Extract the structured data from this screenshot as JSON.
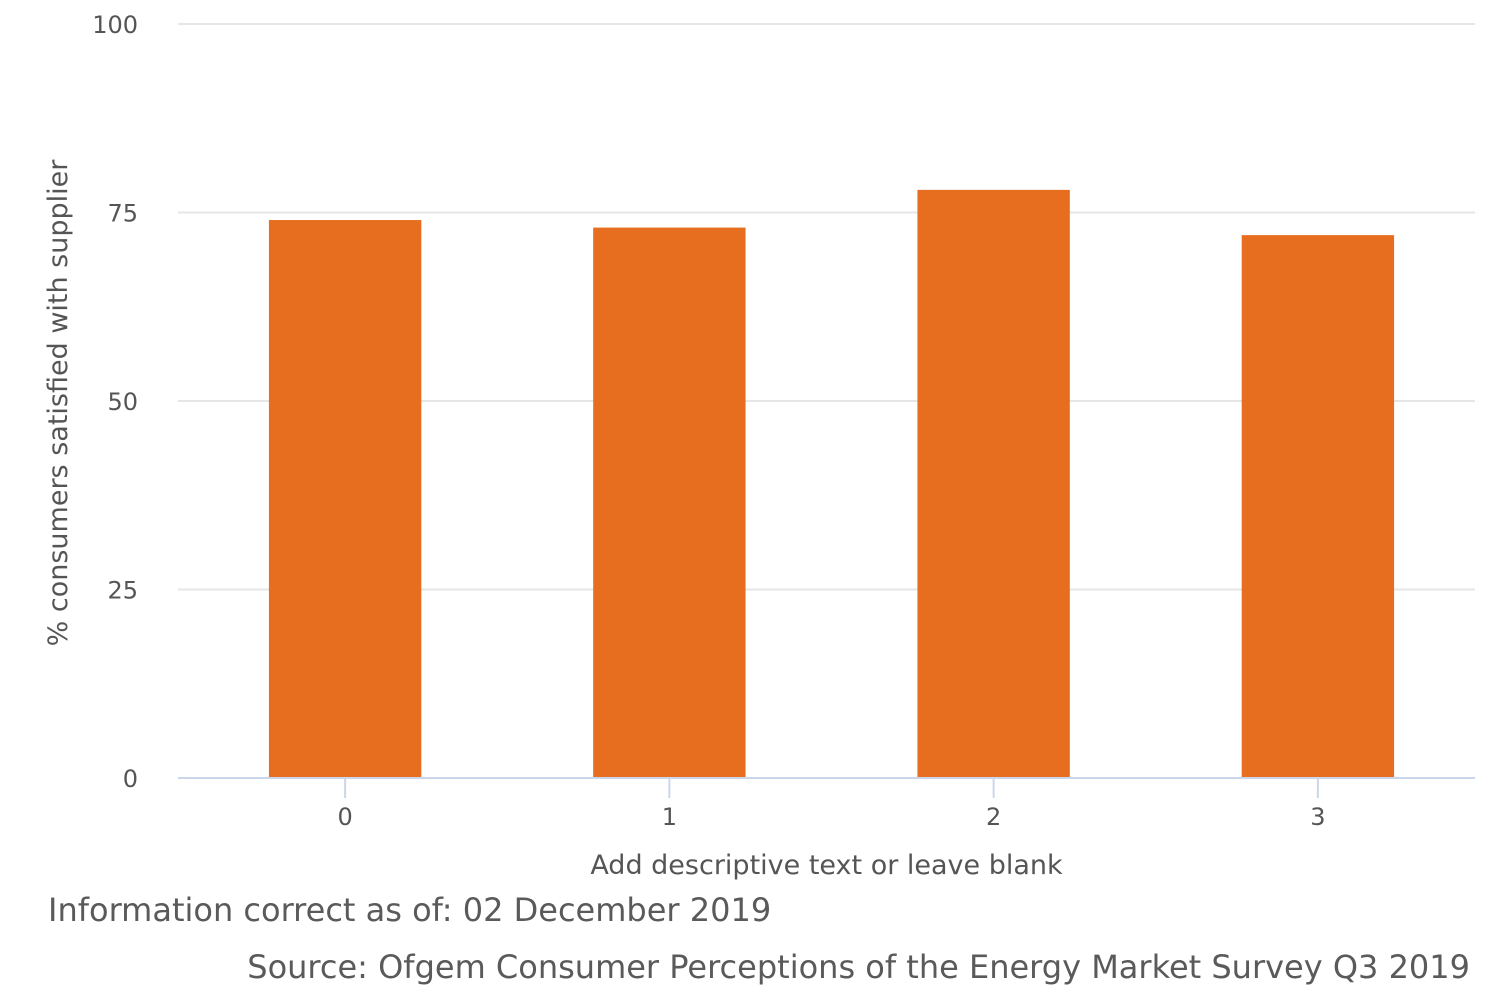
{
  "chart_data": {
    "type": "bar",
    "categories": [
      "0",
      "1",
      "2",
      "3"
    ],
    "values": [
      74,
      73,
      78,
      72
    ],
    "xlabel": "Add descriptive text or leave blank",
    "ylabel": "% consumers satisfied with supplier",
    "ylim": [
      0,
      100
    ],
    "yticks": [
      0,
      25,
      50,
      75,
      100
    ],
    "grid": true,
    "bar_color": "#e86e1f",
    "grid_color": "#e6e6e6",
    "axis_color": "#ccd6eb"
  },
  "footer": {
    "info": "Information correct as of: 02 December 2019",
    "source": "Source: Ofgem Consumer Perceptions of the Energy Market Survey Q3 2019"
  }
}
